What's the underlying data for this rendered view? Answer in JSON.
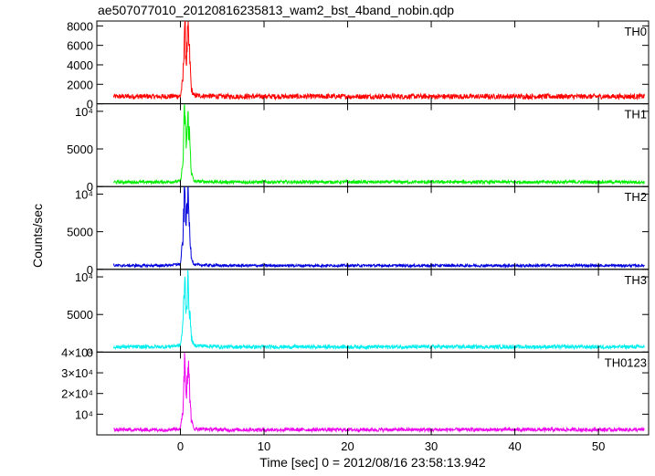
{
  "title": "ae507077010_20120816235813_wam2_bst_4band_nobin.qdp",
  "ylabel": "Counts/sec",
  "xlabel": "Time [sec] 0 = 2012/08/16 23:58:13.942",
  "chart_data": {
    "type": "line",
    "title": "ae507077010_20120816235813_wam2_bst_4band_nobin.qdp",
    "xlabel": "Time [sec] 0 = 2012/08/16 23:58:13.942",
    "ylabel": "Counts/sec",
    "xlim": [
      -10,
      56
    ],
    "x_ticks": [
      0,
      10,
      20,
      30,
      40,
      50
    ],
    "x_tick_labels": [
      "0",
      "10",
      "20",
      "30",
      "40",
      "50"
    ],
    "grid": false,
    "panels": [
      {
        "name": "TH0",
        "color": "#ff0000",
        "ylim": [
          0,
          8500
        ],
        "yticks": [
          0,
          2000,
          4000,
          6000,
          8000
        ],
        "ytick_labels": [
          "0",
          "2000",
          "4000",
          "6000",
          "8000"
        ],
        "x": [
          -8,
          -2,
          0,
          0.3,
          0.5,
          0.7,
          0.9,
          1.1,
          1.3,
          1.6,
          5,
          15,
          25,
          35,
          45,
          55
        ],
        "y": [
          750,
          750,
          800,
          2500,
          8300,
          4200,
          7300,
          5000,
          1500,
          850,
          750,
          750,
          750,
          750,
          750,
          750
        ]
      },
      {
        "name": "TH1",
        "color": "#00ee00",
        "ylim": [
          0,
          11000
        ],
        "yticks": [
          0,
          5000,
          10000
        ],
        "ytick_labels": [
          "0",
          "5000",
          "10⁴"
        ],
        "x": [
          -8,
          -2,
          0,
          0.3,
          0.5,
          0.7,
          0.9,
          1.1,
          1.3,
          1.6,
          5,
          15,
          25,
          35,
          45,
          55
        ],
        "y": [
          600,
          600,
          700,
          3000,
          10500,
          5500,
          9000,
          6500,
          2000,
          700,
          600,
          600,
          600,
          600,
          600,
          600
        ]
      },
      {
        "name": "TH2",
        "color": "#0000dd",
        "ylim": [
          0,
          11000
        ],
        "yticks": [
          0,
          5000,
          10000
        ],
        "ytick_labels": [
          "0",
          "5000",
          "10⁴"
        ],
        "x": [
          -8,
          -2,
          0,
          0.3,
          0.5,
          0.7,
          0.9,
          1.1,
          1.3,
          1.6,
          5,
          15,
          25,
          35,
          45,
          55
        ],
        "y": [
          500,
          500,
          700,
          4000,
          10800,
          6000,
          10500,
          5000,
          1800,
          600,
          500,
          500,
          500,
          500,
          500,
          500
        ]
      },
      {
        "name": "TH3",
        "color": "#00eeee",
        "ylim": [
          0,
          11000
        ],
        "yticks": [
          0,
          5000,
          10000
        ],
        "ytick_labels": [
          "0",
          "5000",
          "10⁴"
        ],
        "x": [
          -8,
          -2,
          0,
          0.3,
          0.5,
          0.7,
          0.9,
          1.1,
          1.3,
          1.6,
          5,
          15,
          25,
          35,
          45,
          55
        ],
        "y": [
          700,
          700,
          900,
          3500,
          10000,
          5500,
          9000,
          5500,
          2000,
          900,
          700,
          700,
          700,
          700,
          700,
          700
        ]
      },
      {
        "name": "TH0123",
        "color": "#ee00ee",
        "ylim": [
          0,
          40000
        ],
        "yticks": [
          10000,
          20000,
          30000,
          40000
        ],
        "ytick_labels": [
          "10⁴",
          "2×10⁴",
          "3×10⁴",
          "4×10⁴"
        ],
        "x": [
          -8,
          -2,
          0,
          0.3,
          0.5,
          0.7,
          0.9,
          1.1,
          1.3,
          1.6,
          5,
          15,
          25,
          35,
          45,
          55
        ],
        "y": [
          2500,
          2500,
          3000,
          12000,
          38000,
          21000,
          35000,
          22000,
          7000,
          3000,
          2500,
          2500,
          2500,
          2500,
          2500,
          2500
        ]
      }
    ]
  }
}
